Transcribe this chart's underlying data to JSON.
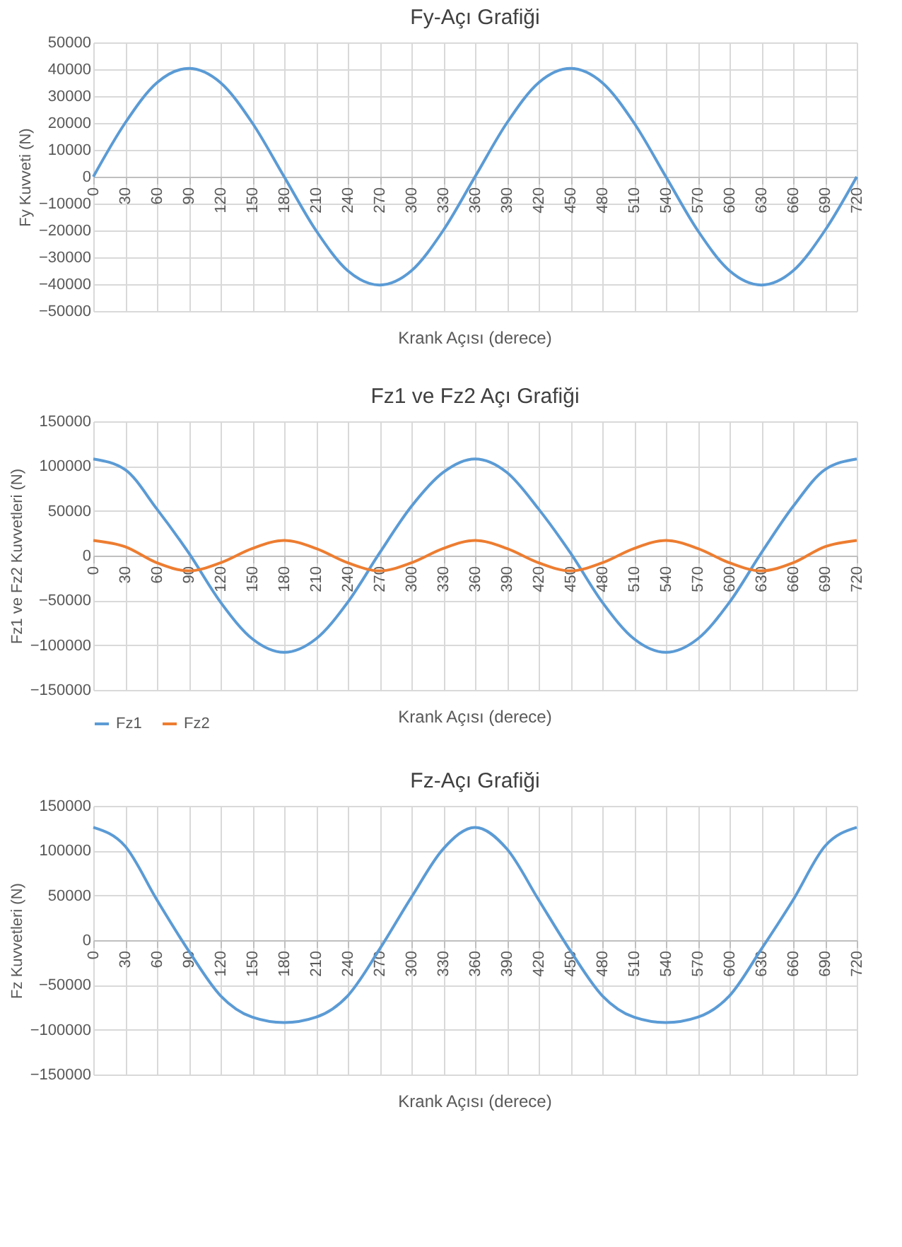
{
  "chart_data": [
    {
      "type": "line",
      "title": "Fy-Açı Grafiği",
      "xlabel": "Krank Açısı (derece)",
      "ylabel": "Fy Kuvveti (N)",
      "x": [
        0,
        30,
        60,
        90,
        120,
        150,
        180,
        210,
        240,
        270,
        300,
        330,
        360,
        390,
        420,
        450,
        480,
        510,
        540,
        570,
        600,
        630,
        660,
        690,
        720
      ],
      "series": [
        {
          "color": "#5b9bd5",
          "values": [
            0,
            20000,
            35000,
            40300,
            35000,
            20000,
            0,
            -20000,
            -35000,
            -40300,
            -35000,
            -20000,
            0,
            20000,
            35000,
            40300,
            35000,
            20000,
            0,
            -20000,
            -35000,
            -40300,
            -35000,
            -20000,
            0
          ]
        }
      ],
      "xlim": [
        0,
        720
      ],
      "xticks": [
        0,
        30,
        60,
        90,
        120,
        150,
        180,
        210,
        240,
        270,
        300,
        330,
        360,
        390,
        420,
        450,
        480,
        510,
        540,
        570,
        600,
        630,
        660,
        690,
        720
      ],
      "ylim": [
        -50000,
        50000
      ],
      "yticks": [
        -50000,
        -40000,
        -30000,
        -20000,
        -10000,
        0,
        10000,
        20000,
        30000,
        40000,
        50000
      ],
      "grid": true
    },
    {
      "type": "line",
      "title": "Fz1 ve Fz2 Açı Grafiği",
      "xlabel": "Krank Açısı (derece)",
      "ylabel": "Fz1 ve Fz2 Kuvvetleri (N)",
      "x": [
        0,
        30,
        60,
        90,
        120,
        150,
        180,
        210,
        240,
        270,
        300,
        330,
        360,
        390,
        420,
        450,
        480,
        510,
        540,
        570,
        600,
        630,
        660,
        690,
        720
      ],
      "series": [
        {
          "name": "Fz1",
          "color": "#5b9bd5",
          "values": [
            108000,
            96000,
            52000,
            3000,
            -52000,
            -93000,
            -108000,
            -93000,
            -52000,
            3000,
            55000,
            93000,
            108000,
            93000,
            52000,
            3000,
            -52000,
            -93000,
            -108000,
            -93000,
            -52000,
            3000,
            55000,
            96000,
            108000
          ]
        },
        {
          "name": "Fz2",
          "color": "#ed7d31",
          "values": [
            17000,
            10000,
            -8000,
            -17000,
            -8000,
            8000,
            17000,
            8000,
            -8000,
            -17000,
            -8000,
            8000,
            17000,
            8000,
            -8000,
            -17000,
            -8000,
            8000,
            17000,
            8000,
            -8000,
            -17000,
            -8000,
            10000,
            17000
          ]
        }
      ],
      "xlim": [
        0,
        720
      ],
      "xticks": [
        0,
        30,
        60,
        90,
        120,
        150,
        180,
        210,
        240,
        270,
        300,
        330,
        360,
        390,
        420,
        450,
        480,
        510,
        540,
        570,
        600,
        630,
        660,
        690,
        720
      ],
      "ylim": [
        -150000,
        150000
      ],
      "yticks": [
        -150000,
        -100000,
        -50000,
        0,
        50000,
        100000,
        150000
      ],
      "grid": true,
      "legend": "bottom"
    },
    {
      "type": "line",
      "title": "Fz-Açı Grafiği",
      "xlabel": "Krank Açısı (derece)",
      "ylabel": "Fz Kuvvetleri (N)",
      "x": [
        0,
        30,
        60,
        90,
        120,
        150,
        180,
        210,
        240,
        270,
        300,
        330,
        360,
        390,
        420,
        450,
        480,
        510,
        540,
        570,
        600,
        630,
        660,
        690,
        720
      ],
      "series": [
        {
          "color": "#5b9bd5",
          "values": [
            126000,
            105000,
            45000,
            -12000,
            -62000,
            -86000,
            -92000,
            -86000,
            -62000,
            -10000,
            48000,
            102000,
            126000,
            102000,
            45000,
            -12000,
            -62000,
            -86000,
            -92000,
            -86000,
            -62000,
            -10000,
            45000,
            105000,
            126000
          ]
        }
      ],
      "xlim": [
        0,
        720
      ],
      "xticks": [
        0,
        30,
        60,
        90,
        120,
        150,
        180,
        210,
        240,
        270,
        300,
        330,
        360,
        390,
        420,
        450,
        480,
        510,
        540,
        570,
        600,
        630,
        660,
        690,
        720
      ],
      "ylim": [
        -150000,
        150000
      ],
      "yticks": [
        -150000,
        -100000,
        -50000,
        0,
        50000,
        100000,
        150000
      ],
      "grid": true
    }
  ]
}
